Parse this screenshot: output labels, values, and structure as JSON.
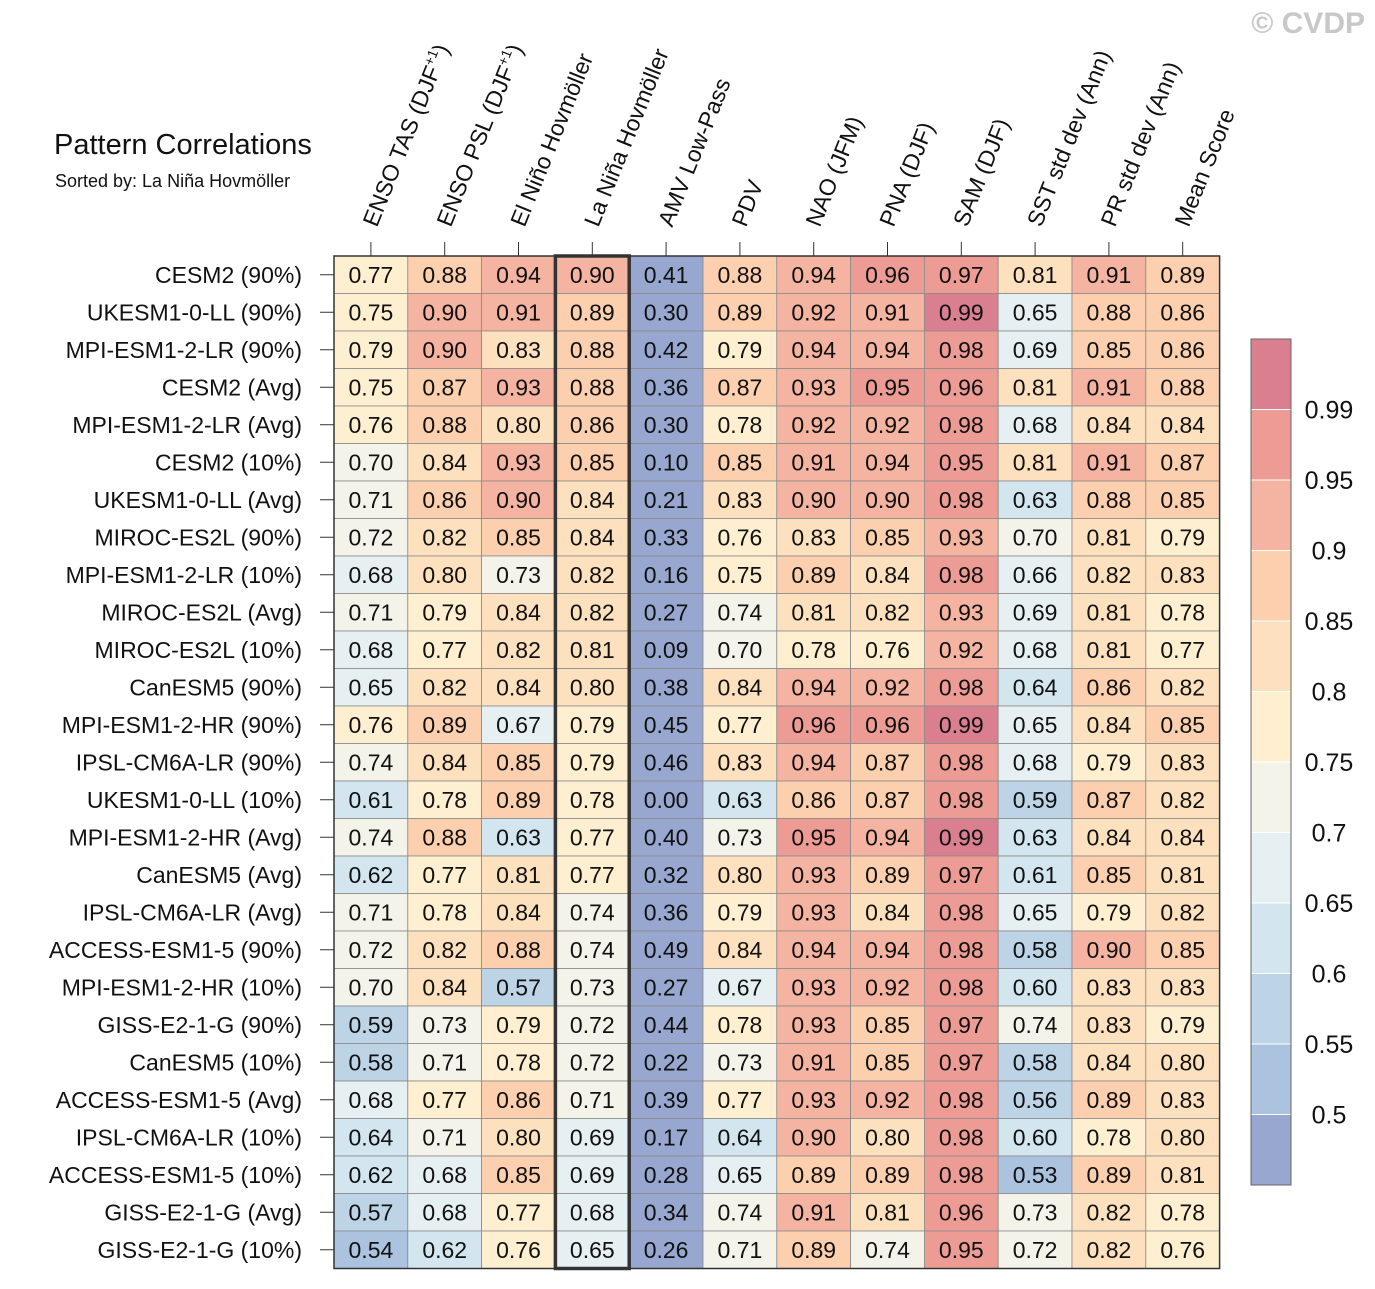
{
  "watermark": "© CVDP",
  "chart_data": {
    "type": "heatmap",
    "title": "Pattern Correlations",
    "subtitle": "Sorted by: La Niña Hovmöller",
    "highlighted_column": "La Niña Hovmöller",
    "columns": [
      {
        "label": "ENSO TAS (DJF",
        "sup": "+1",
        "suffix": ")"
      },
      {
        "label": "ENSO PSL (DJF",
        "sup": "+1",
        "suffix": ")"
      },
      {
        "label": "El Niño Hovmöller"
      },
      {
        "label": "La Niña Hovmöller"
      },
      {
        "label": "AMV Low-Pass"
      },
      {
        "label": "PDV"
      },
      {
        "label": "NAO (JFM)"
      },
      {
        "label": "PNA (DJF)"
      },
      {
        "label": "SAM (DJF)"
      },
      {
        "label": "SST std dev (Ann)"
      },
      {
        "label": "PR std dev (Ann)"
      },
      {
        "label": "Mean Score"
      }
    ],
    "rows": [
      {
        "name": "CESM2 (90%)",
        "values": [
          "0.77",
          "0.88",
          "0.94",
          "0.90",
          "0.41",
          "0.88",
          "0.94",
          "0.96",
          "0.97",
          "0.81",
          "0.91",
          "0.89"
        ]
      },
      {
        "name": "UKESM1-0-LL (90%)",
        "values": [
          "0.75",
          "0.90",
          "0.91",
          "0.89",
          "0.30",
          "0.89",
          "0.92",
          "0.91",
          "0.99",
          "0.65",
          "0.88",
          "0.86"
        ]
      },
      {
        "name": "MPI-ESM1-2-LR (90%)",
        "values": [
          "0.79",
          "0.90",
          "0.83",
          "0.88",
          "0.42",
          "0.79",
          "0.94",
          "0.94",
          "0.98",
          "0.69",
          "0.85",
          "0.86"
        ]
      },
      {
        "name": "CESM2 (Avg)",
        "values": [
          "0.75",
          "0.87",
          "0.93",
          "0.88",
          "0.36",
          "0.87",
          "0.93",
          "0.95",
          "0.96",
          "0.81",
          "0.91",
          "0.88"
        ]
      },
      {
        "name": "MPI-ESM1-2-LR (Avg)",
        "values": [
          "0.76",
          "0.88",
          "0.80",
          "0.86",
          "0.30",
          "0.78",
          "0.92",
          "0.92",
          "0.98",
          "0.68",
          "0.84",
          "0.84"
        ]
      },
      {
        "name": "CESM2 (10%)",
        "values": [
          "0.70",
          "0.84",
          "0.93",
          "0.85",
          "0.10",
          "0.85",
          "0.91",
          "0.94",
          "0.95",
          "0.81",
          "0.91",
          "0.87"
        ]
      },
      {
        "name": "UKESM1-0-LL (Avg)",
        "values": [
          "0.71",
          "0.86",
          "0.90",
          "0.84",
          "0.21",
          "0.83",
          "0.90",
          "0.90",
          "0.98",
          "0.63",
          "0.88",
          "0.85"
        ]
      },
      {
        "name": "MIROC-ES2L (90%)",
        "values": [
          "0.72",
          "0.82",
          "0.85",
          "0.84",
          "0.33",
          "0.76",
          "0.83",
          "0.85",
          "0.93",
          "0.70",
          "0.81",
          "0.79"
        ]
      },
      {
        "name": "MPI-ESM1-2-LR (10%)",
        "values": [
          "0.68",
          "0.80",
          "0.73",
          "0.82",
          "0.16",
          "0.75",
          "0.89",
          "0.84",
          "0.98",
          "0.66",
          "0.82",
          "0.83"
        ]
      },
      {
        "name": "MIROC-ES2L (Avg)",
        "values": [
          "0.71",
          "0.79",
          "0.84",
          "0.82",
          "0.27",
          "0.74",
          "0.81",
          "0.82",
          "0.93",
          "0.69",
          "0.81",
          "0.78"
        ]
      },
      {
        "name": "MIROC-ES2L (10%)",
        "values": [
          "0.68",
          "0.77",
          "0.82",
          "0.81",
          "0.09",
          "0.70",
          "0.78",
          "0.76",
          "0.92",
          "0.68",
          "0.81",
          "0.77"
        ]
      },
      {
        "name": "CanESM5 (90%)",
        "values": [
          "0.65",
          "0.82",
          "0.84",
          "0.80",
          "0.38",
          "0.84",
          "0.94",
          "0.92",
          "0.98",
          "0.64",
          "0.86",
          "0.82"
        ]
      },
      {
        "name": "MPI-ESM1-2-HR (90%)",
        "values": [
          "0.76",
          "0.89",
          "0.67",
          "0.79",
          "0.45",
          "0.77",
          "0.96",
          "0.96",
          "0.99",
          "0.65",
          "0.84",
          "0.85"
        ]
      },
      {
        "name": "IPSL-CM6A-LR (90%)",
        "values": [
          "0.74",
          "0.84",
          "0.85",
          "0.79",
          "0.46",
          "0.83",
          "0.94",
          "0.87",
          "0.98",
          "0.68",
          "0.79",
          "0.83"
        ]
      },
      {
        "name": "UKESM1-0-LL (10%)",
        "values": [
          "0.61",
          "0.78",
          "0.89",
          "0.78",
          "0.00",
          "0.63",
          "0.86",
          "0.87",
          "0.98",
          "0.59",
          "0.87",
          "0.82"
        ]
      },
      {
        "name": "MPI-ESM1-2-HR (Avg)",
        "values": [
          "0.74",
          "0.88",
          "0.63",
          "0.77",
          "0.40",
          "0.73",
          "0.95",
          "0.94",
          "0.99",
          "0.63",
          "0.84",
          "0.84"
        ]
      },
      {
        "name": "CanESM5 (Avg)",
        "values": [
          "0.62",
          "0.77",
          "0.81",
          "0.77",
          "0.32",
          "0.80",
          "0.93",
          "0.89",
          "0.97",
          "0.61",
          "0.85",
          "0.81"
        ]
      },
      {
        "name": "IPSL-CM6A-LR (Avg)",
        "values": [
          "0.71",
          "0.78",
          "0.84",
          "0.74",
          "0.36",
          "0.79",
          "0.93",
          "0.84",
          "0.98",
          "0.65",
          "0.79",
          "0.82"
        ]
      },
      {
        "name": "ACCESS-ESM1-5 (90%)",
        "values": [
          "0.72",
          "0.82",
          "0.88",
          "0.74",
          "0.49",
          "0.84",
          "0.94",
          "0.94",
          "0.98",
          "0.58",
          "0.90",
          "0.85"
        ]
      },
      {
        "name": "MPI-ESM1-2-HR (10%)",
        "values": [
          "0.70",
          "0.84",
          "0.57",
          "0.73",
          "0.27",
          "0.67",
          "0.93",
          "0.92",
          "0.98",
          "0.60",
          "0.83",
          "0.83"
        ]
      },
      {
        "name": "GISS-E2-1-G (90%)",
        "values": [
          "0.59",
          "0.73",
          "0.79",
          "0.72",
          "0.44",
          "0.78",
          "0.93",
          "0.85",
          "0.97",
          "0.74",
          "0.83",
          "0.79"
        ]
      },
      {
        "name": "CanESM5 (10%)",
        "values": [
          "0.58",
          "0.71",
          "0.78",
          "0.72",
          "0.22",
          "0.73",
          "0.91",
          "0.85",
          "0.97",
          "0.58",
          "0.84",
          "0.80"
        ]
      },
      {
        "name": "ACCESS-ESM1-5 (Avg)",
        "values": [
          "0.68",
          "0.77",
          "0.86",
          "0.71",
          "0.39",
          "0.77",
          "0.93",
          "0.92",
          "0.98",
          "0.56",
          "0.89",
          "0.83"
        ]
      },
      {
        "name": "IPSL-CM6A-LR (10%)",
        "values": [
          "0.64",
          "0.71",
          "0.80",
          "0.69",
          "0.17",
          "0.64",
          "0.90",
          "0.80",
          "0.98",
          "0.60",
          "0.78",
          "0.80"
        ]
      },
      {
        "name": "ACCESS-ESM1-5 (10%)",
        "values": [
          "0.62",
          "0.68",
          "0.85",
          "0.69",
          "0.28",
          "0.65",
          "0.89",
          "0.89",
          "0.98",
          "0.53",
          "0.89",
          "0.81"
        ]
      },
      {
        "name": "GISS-E2-1-G (Avg)",
        "values": [
          "0.57",
          "0.68",
          "0.77",
          "0.68",
          "0.34",
          "0.74",
          "0.91",
          "0.81",
          "0.96",
          "0.73",
          "0.82",
          "0.78"
        ]
      },
      {
        "name": "GISS-E2-1-G (10%)",
        "values": [
          "0.54",
          "0.62",
          "0.76",
          "0.65",
          "0.26",
          "0.71",
          "0.89",
          "0.74",
          "0.95",
          "0.72",
          "0.82",
          "0.76"
        ]
      }
    ],
    "colorbar": {
      "bins": [
        {
          "min": -1.0,
          "max": 0.5,
          "color": "#98a7cf"
        },
        {
          "min": 0.5,
          "max": 0.55,
          "color": "#abc3df"
        },
        {
          "min": 0.55,
          "max": 0.6,
          "color": "#bdd3e6"
        },
        {
          "min": 0.6,
          "max": 0.65,
          "color": "#d3e5ef"
        },
        {
          "min": 0.65,
          "max": 0.7,
          "color": "#e6f0f3"
        },
        {
          "min": 0.7,
          "max": 0.75,
          "color": "#f4f3ea"
        },
        {
          "min": 0.75,
          "max": 0.8,
          "color": "#fdefcf"
        },
        {
          "min": 0.8,
          "max": 0.85,
          "color": "#fde1bf"
        },
        {
          "min": 0.85,
          "max": 0.9,
          "color": "#fccfae"
        },
        {
          "min": 0.9,
          "max": 0.95,
          "color": "#f5b4a2"
        },
        {
          "min": 0.95,
          "max": 0.99,
          "color": "#ec9c95"
        },
        {
          "min": 0.99,
          "max": 1.0,
          "color": "#d97f90"
        }
      ],
      "tick_labels": [
        "0.5",
        "0.55",
        "0.6",
        "0.65",
        "0.7",
        "0.75",
        "0.8",
        "0.85",
        "0.9",
        "0.95",
        "0.99"
      ]
    }
  }
}
